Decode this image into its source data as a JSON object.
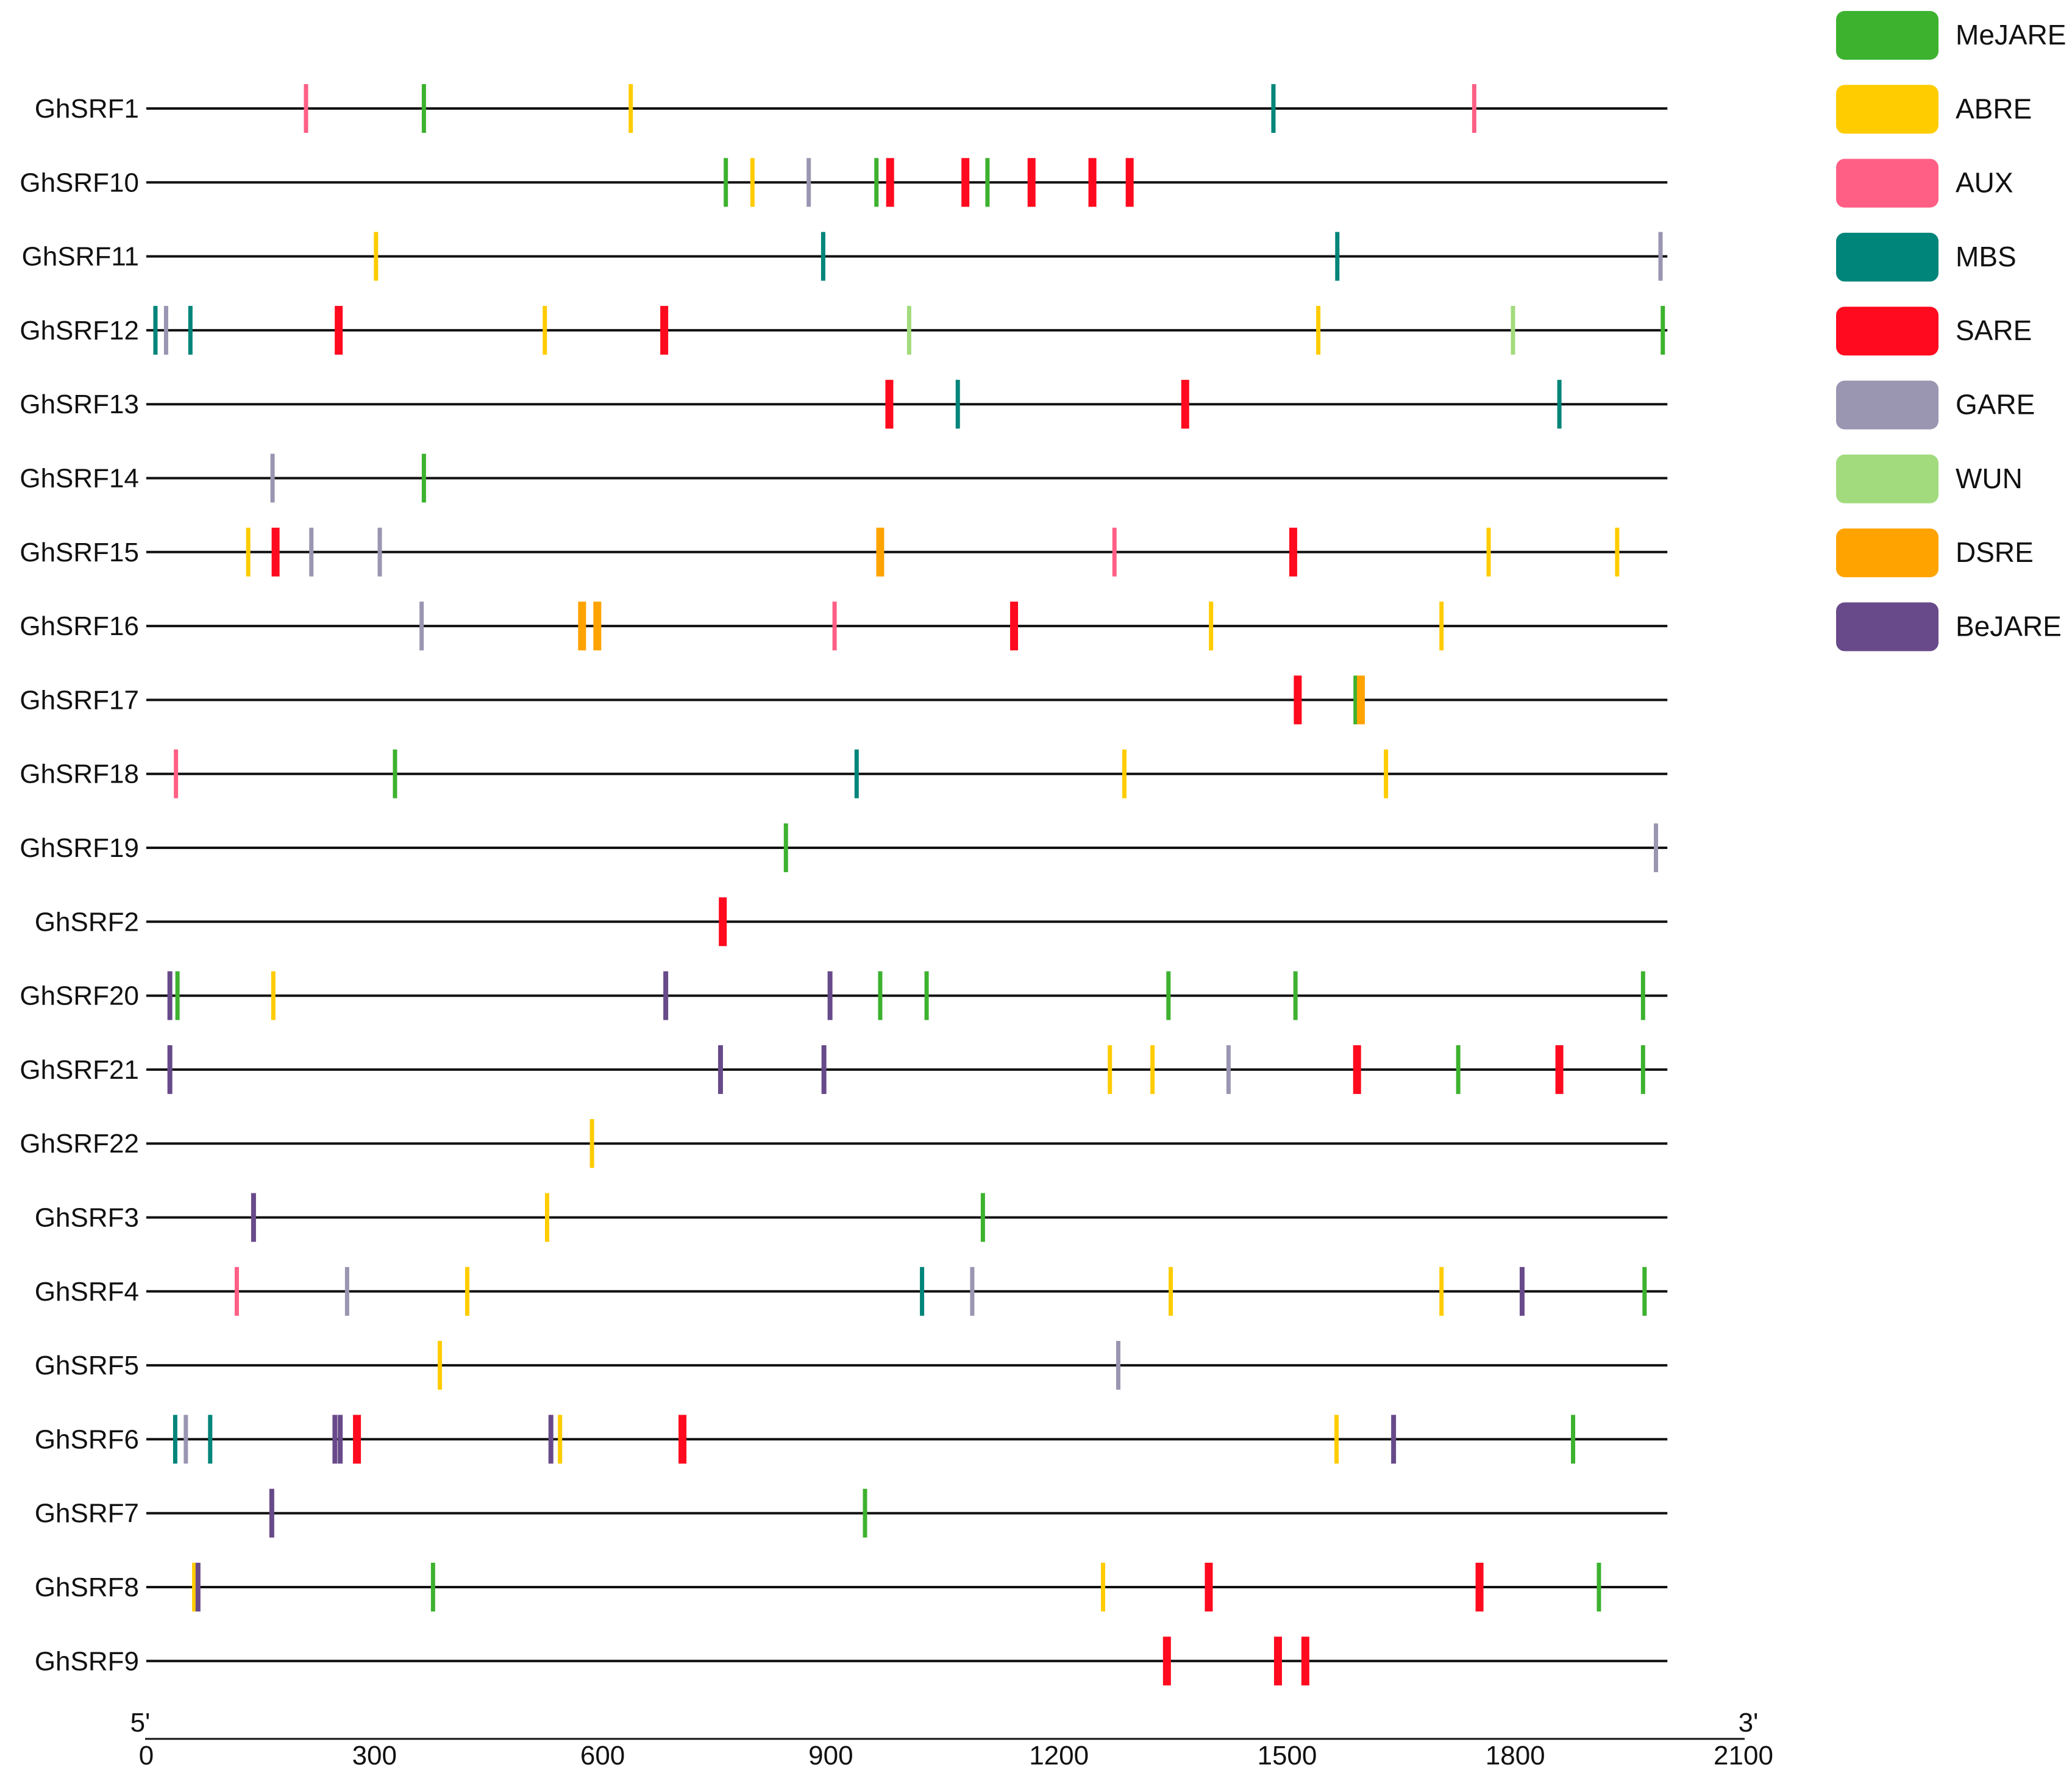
{
  "chart_data": {
    "type": "feature-map",
    "title": "",
    "xlabel": "",
    "ylabel": "",
    "xlim": [
      0,
      2100
    ],
    "sequence_length": 2000,
    "x_ticks": [
      0,
      300,
      600,
      900,
      1200,
      1500,
      1800,
      2100
    ],
    "end_labels": {
      "left": "5'",
      "right": "3'"
    },
    "legend_position": "top-right",
    "legend": [
      {
        "name": "MeJARE",
        "color": "#3DB22F"
      },
      {
        "name": "ABRE",
        "color": "#FFCC00"
      },
      {
        "name": "AUX",
        "color": "#FF5F85"
      },
      {
        "name": "MBS",
        "color": "#00857A"
      },
      {
        "name": "SARE",
        "color": "#FF0A1E"
      },
      {
        "name": "GARE",
        "color": "#9A95B1"
      },
      {
        "name": "WUN",
        "color": "#A2DB7E"
      },
      {
        "name": "DSRE",
        "color": "#FFA300"
      },
      {
        "name": "BeJARE",
        "color": "#684A8A"
      }
    ],
    "genes": [
      {
        "name": "GhSRF1",
        "elements": [
          {
            "type": "AUX",
            "pos": 210
          },
          {
            "type": "MeJARE",
            "pos": 365
          },
          {
            "type": "ABRE",
            "pos": 637
          },
          {
            "type": "MBS",
            "pos": 1482
          },
          {
            "type": "AUX",
            "pos": 1746
          }
        ]
      },
      {
        "name": "GhSRF10",
        "elements": [
          {
            "type": "MeJARE",
            "pos": 762
          },
          {
            "type": "ABRE",
            "pos": 797
          },
          {
            "type": "GARE",
            "pos": 871
          },
          {
            "type": "MeJARE",
            "pos": 960
          },
          {
            "type": "SARE",
            "pos": 978
          },
          {
            "type": "SARE",
            "pos": 1077
          },
          {
            "type": "MeJARE",
            "pos": 1106
          },
          {
            "type": "SARE",
            "pos": 1164
          },
          {
            "type": "SARE",
            "pos": 1244
          },
          {
            "type": "SARE",
            "pos": 1293
          }
        ]
      },
      {
        "name": "GhSRF11",
        "elements": [
          {
            "type": "ABRE",
            "pos": 302
          },
          {
            "type": "MBS",
            "pos": 890
          },
          {
            "type": "MBS",
            "pos": 1566
          },
          {
            "type": "GARE",
            "pos": 1991
          }
        ]
      },
      {
        "name": "GhSRF12",
        "elements": [
          {
            "type": "MBS",
            "pos": 12
          },
          {
            "type": "GARE",
            "pos": 26
          },
          {
            "type": "MBS",
            "pos": 58
          },
          {
            "type": "SARE",
            "pos": 253
          },
          {
            "type": "ABRE",
            "pos": 524
          },
          {
            "type": "SARE",
            "pos": 681
          },
          {
            "type": "WUN",
            "pos": 1003
          },
          {
            "type": "ABRE",
            "pos": 1541
          },
          {
            "type": "WUN",
            "pos": 1797
          },
          {
            "type": "MeJARE",
            "pos": 1994
          }
        ]
      },
      {
        "name": "GhSRF13",
        "elements": [
          {
            "type": "SARE",
            "pos": 977
          },
          {
            "type": "MBS",
            "pos": 1067
          },
          {
            "type": "SARE",
            "pos": 1366
          },
          {
            "type": "MBS",
            "pos": 1858
          }
        ]
      },
      {
        "name": "GhSRF14",
        "elements": [
          {
            "type": "GARE",
            "pos": 166
          },
          {
            "type": "MeJARE",
            "pos": 365
          }
        ]
      },
      {
        "name": "GhSRF15",
        "elements": [
          {
            "type": "ABRE",
            "pos": 134
          },
          {
            "type": "SARE",
            "pos": 170
          },
          {
            "type": "GARE",
            "pos": 217
          },
          {
            "type": "GARE",
            "pos": 307
          },
          {
            "type": "DSRE",
            "pos": 965
          },
          {
            "type": "AUX",
            "pos": 1273
          },
          {
            "type": "SARE",
            "pos": 1508
          },
          {
            "type": "ABRE",
            "pos": 1765
          },
          {
            "type": "ABRE",
            "pos": 1934
          }
        ]
      },
      {
        "name": "GhSRF16",
        "elements": [
          {
            "type": "GARE",
            "pos": 362
          },
          {
            "type": "DSRE",
            "pos": 573
          },
          {
            "type": "DSRE",
            "pos": 593
          },
          {
            "type": "AUX",
            "pos": 905
          },
          {
            "type": "SARE",
            "pos": 1141
          },
          {
            "type": "ABRE",
            "pos": 1400
          },
          {
            "type": "ABRE",
            "pos": 1703
          }
        ]
      },
      {
        "name": "GhSRF17",
        "elements": [
          {
            "type": "SARE",
            "pos": 1514
          },
          {
            "type": "MeJARE",
            "pos": 1590
          },
          {
            "type": "DSRE",
            "pos": 1597
          }
        ]
      },
      {
        "name": "GhSRF18",
        "elements": [
          {
            "type": "AUX",
            "pos": 39
          },
          {
            "type": "MeJARE",
            "pos": 327
          },
          {
            "type": "MBS",
            "pos": 934
          },
          {
            "type": "ABRE",
            "pos": 1286
          },
          {
            "type": "ABRE",
            "pos": 1630
          }
        ]
      },
      {
        "name": "GhSRF19",
        "elements": [
          {
            "type": "MeJARE",
            "pos": 841
          },
          {
            "type": "GARE",
            "pos": 1985
          }
        ]
      },
      {
        "name": "GhSRF2",
        "elements": [
          {
            "type": "SARE",
            "pos": 758
          }
        ]
      },
      {
        "name": "GhSRF20",
        "elements": [
          {
            "type": "BeJARE",
            "pos": 31
          },
          {
            "type": "MeJARE",
            "pos": 41
          },
          {
            "type": "ABRE",
            "pos": 167
          },
          {
            "type": "BeJARE",
            "pos": 683
          },
          {
            "type": "BeJARE",
            "pos": 899
          },
          {
            "type": "MeJARE",
            "pos": 965
          },
          {
            "type": "MeJARE",
            "pos": 1026
          },
          {
            "type": "MeJARE",
            "pos": 1344
          },
          {
            "type": "MeJARE",
            "pos": 1511
          },
          {
            "type": "MeJARE",
            "pos": 1968
          }
        ]
      },
      {
        "name": "GhSRF21",
        "elements": [
          {
            "type": "BeJARE",
            "pos": 31
          },
          {
            "type": "BeJARE",
            "pos": 755
          },
          {
            "type": "BeJARE",
            "pos": 891
          },
          {
            "type": "ABRE",
            "pos": 1267
          },
          {
            "type": "ABRE",
            "pos": 1323
          },
          {
            "type": "GARE",
            "pos": 1423
          },
          {
            "type": "SARE",
            "pos": 1592
          },
          {
            "type": "MeJARE",
            "pos": 1725
          },
          {
            "type": "SARE",
            "pos": 1858
          },
          {
            "type": "MeJARE",
            "pos": 1968
          }
        ]
      },
      {
        "name": "GhSRF22",
        "elements": [
          {
            "type": "ABRE",
            "pos": 586
          }
        ]
      },
      {
        "name": "GhSRF3",
        "elements": [
          {
            "type": "BeJARE",
            "pos": 141
          },
          {
            "type": "ABRE",
            "pos": 527
          },
          {
            "type": "MeJARE",
            "pos": 1100
          }
        ]
      },
      {
        "name": "GhSRF4",
        "elements": [
          {
            "type": "AUX",
            "pos": 119
          },
          {
            "type": "GARE",
            "pos": 264
          },
          {
            "type": "ABRE",
            "pos": 422
          },
          {
            "type": "MBS",
            "pos": 1020
          },
          {
            "type": "GARE",
            "pos": 1086
          },
          {
            "type": "ABRE",
            "pos": 1347
          },
          {
            "type": "ABRE",
            "pos": 1703
          },
          {
            "type": "BeJARE",
            "pos": 1809
          },
          {
            "type": "MeJARE",
            "pos": 1970
          }
        ]
      },
      {
        "name": "GhSRF5",
        "elements": [
          {
            "type": "ABRE",
            "pos": 386
          },
          {
            "type": "GARE",
            "pos": 1278
          }
        ]
      },
      {
        "name": "GhSRF6",
        "elements": [
          {
            "type": "MBS",
            "pos": 38
          },
          {
            "type": "GARE",
            "pos": 52
          },
          {
            "type": "MBS",
            "pos": 84
          },
          {
            "type": "BeJARE",
            "pos": 248
          },
          {
            "type": "BeJARE",
            "pos": 255
          },
          {
            "type": "SARE",
            "pos": 277
          },
          {
            "type": "BeJARE",
            "pos": 532
          },
          {
            "type": "ABRE",
            "pos": 544
          },
          {
            "type": "SARE",
            "pos": 705
          },
          {
            "type": "ABRE",
            "pos": 1565
          },
          {
            "type": "BeJARE",
            "pos": 1640
          },
          {
            "type": "MeJARE",
            "pos": 1876
          }
        ]
      },
      {
        "name": "GhSRF7",
        "elements": [
          {
            "type": "BeJARE",
            "pos": 165
          },
          {
            "type": "MeJARE",
            "pos": 945
          }
        ]
      },
      {
        "name": "GhSRF8",
        "elements": [
          {
            "type": "ABRE",
            "pos": 63
          },
          {
            "type": "BeJARE",
            "pos": 68
          },
          {
            "type": "MeJARE",
            "pos": 377
          },
          {
            "type": "ABRE",
            "pos": 1258
          },
          {
            "type": "SARE",
            "pos": 1397
          },
          {
            "type": "SARE",
            "pos": 1753
          },
          {
            "type": "MeJARE",
            "pos": 1910
          }
        ]
      },
      {
        "name": "GhSRF9",
        "elements": [
          {
            "type": "SARE",
            "pos": 1342
          },
          {
            "type": "SARE",
            "pos": 1488
          },
          {
            "type": "SARE",
            "pos": 1524
          }
        ]
      }
    ]
  }
}
